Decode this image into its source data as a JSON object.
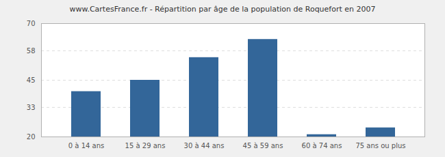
{
  "chart_data": {
    "type": "bar",
    "title": "www.CartesFrance.fr - Répartition par âge de la population de Roquefort en 2007",
    "categories": [
      "0 à 14 ans",
      "15 à 29 ans",
      "30 à 44 ans",
      "45 à 59 ans",
      "60 à 74 ans",
      "75 ans ou plus"
    ],
    "values": [
      40,
      45,
      55,
      63,
      21,
      24
    ],
    "color": "#336699",
    "ylim": [
      20,
      70
    ],
    "yticks": [
      20,
      33,
      45,
      58,
      70
    ],
    "grid": true
  }
}
